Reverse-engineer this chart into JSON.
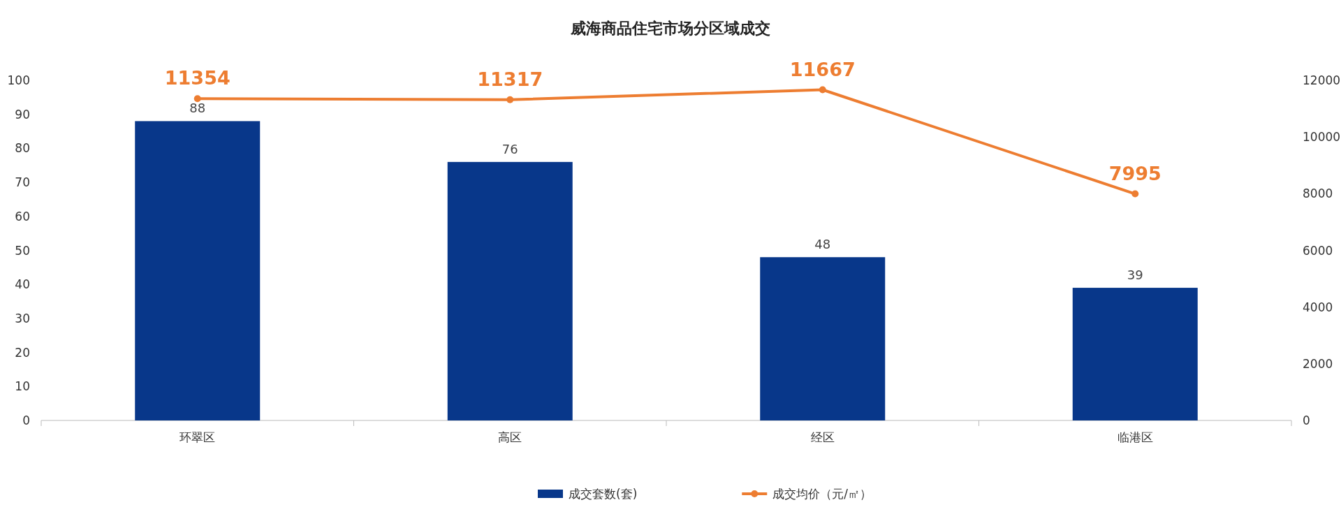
{
  "chart_data": {
    "type": "bar",
    "title": "威海商品住宅市场分区域成交",
    "categories": [
      "环翠区",
      "高区",
      "经区",
      "临港区"
    ],
    "series": [
      {
        "name": "成交套数(套)",
        "color": "#08378a",
        "values": [
          88,
          76,
          48,
          39
        ]
      },
      {
        "name": "成交均价（元/㎡）",
        "type": "line",
        "axis": "y2",
        "color": "#ed7d31",
        "marker": "circle",
        "values": [
          11354,
          11317,
          11667,
          7995
        ]
      }
    ],
    "ylim": [
      0,
      100
    ],
    "yticks": [
      0,
      10,
      20,
      30,
      40,
      50,
      60,
      70,
      80,
      90,
      100
    ],
    "y2lim": [
      0,
      12000
    ],
    "y2ticks": [
      0,
      2000,
      4000,
      6000,
      8000,
      10000,
      12000
    ],
    "data_labels": true,
    "grid": false,
    "legend": "bottom"
  }
}
